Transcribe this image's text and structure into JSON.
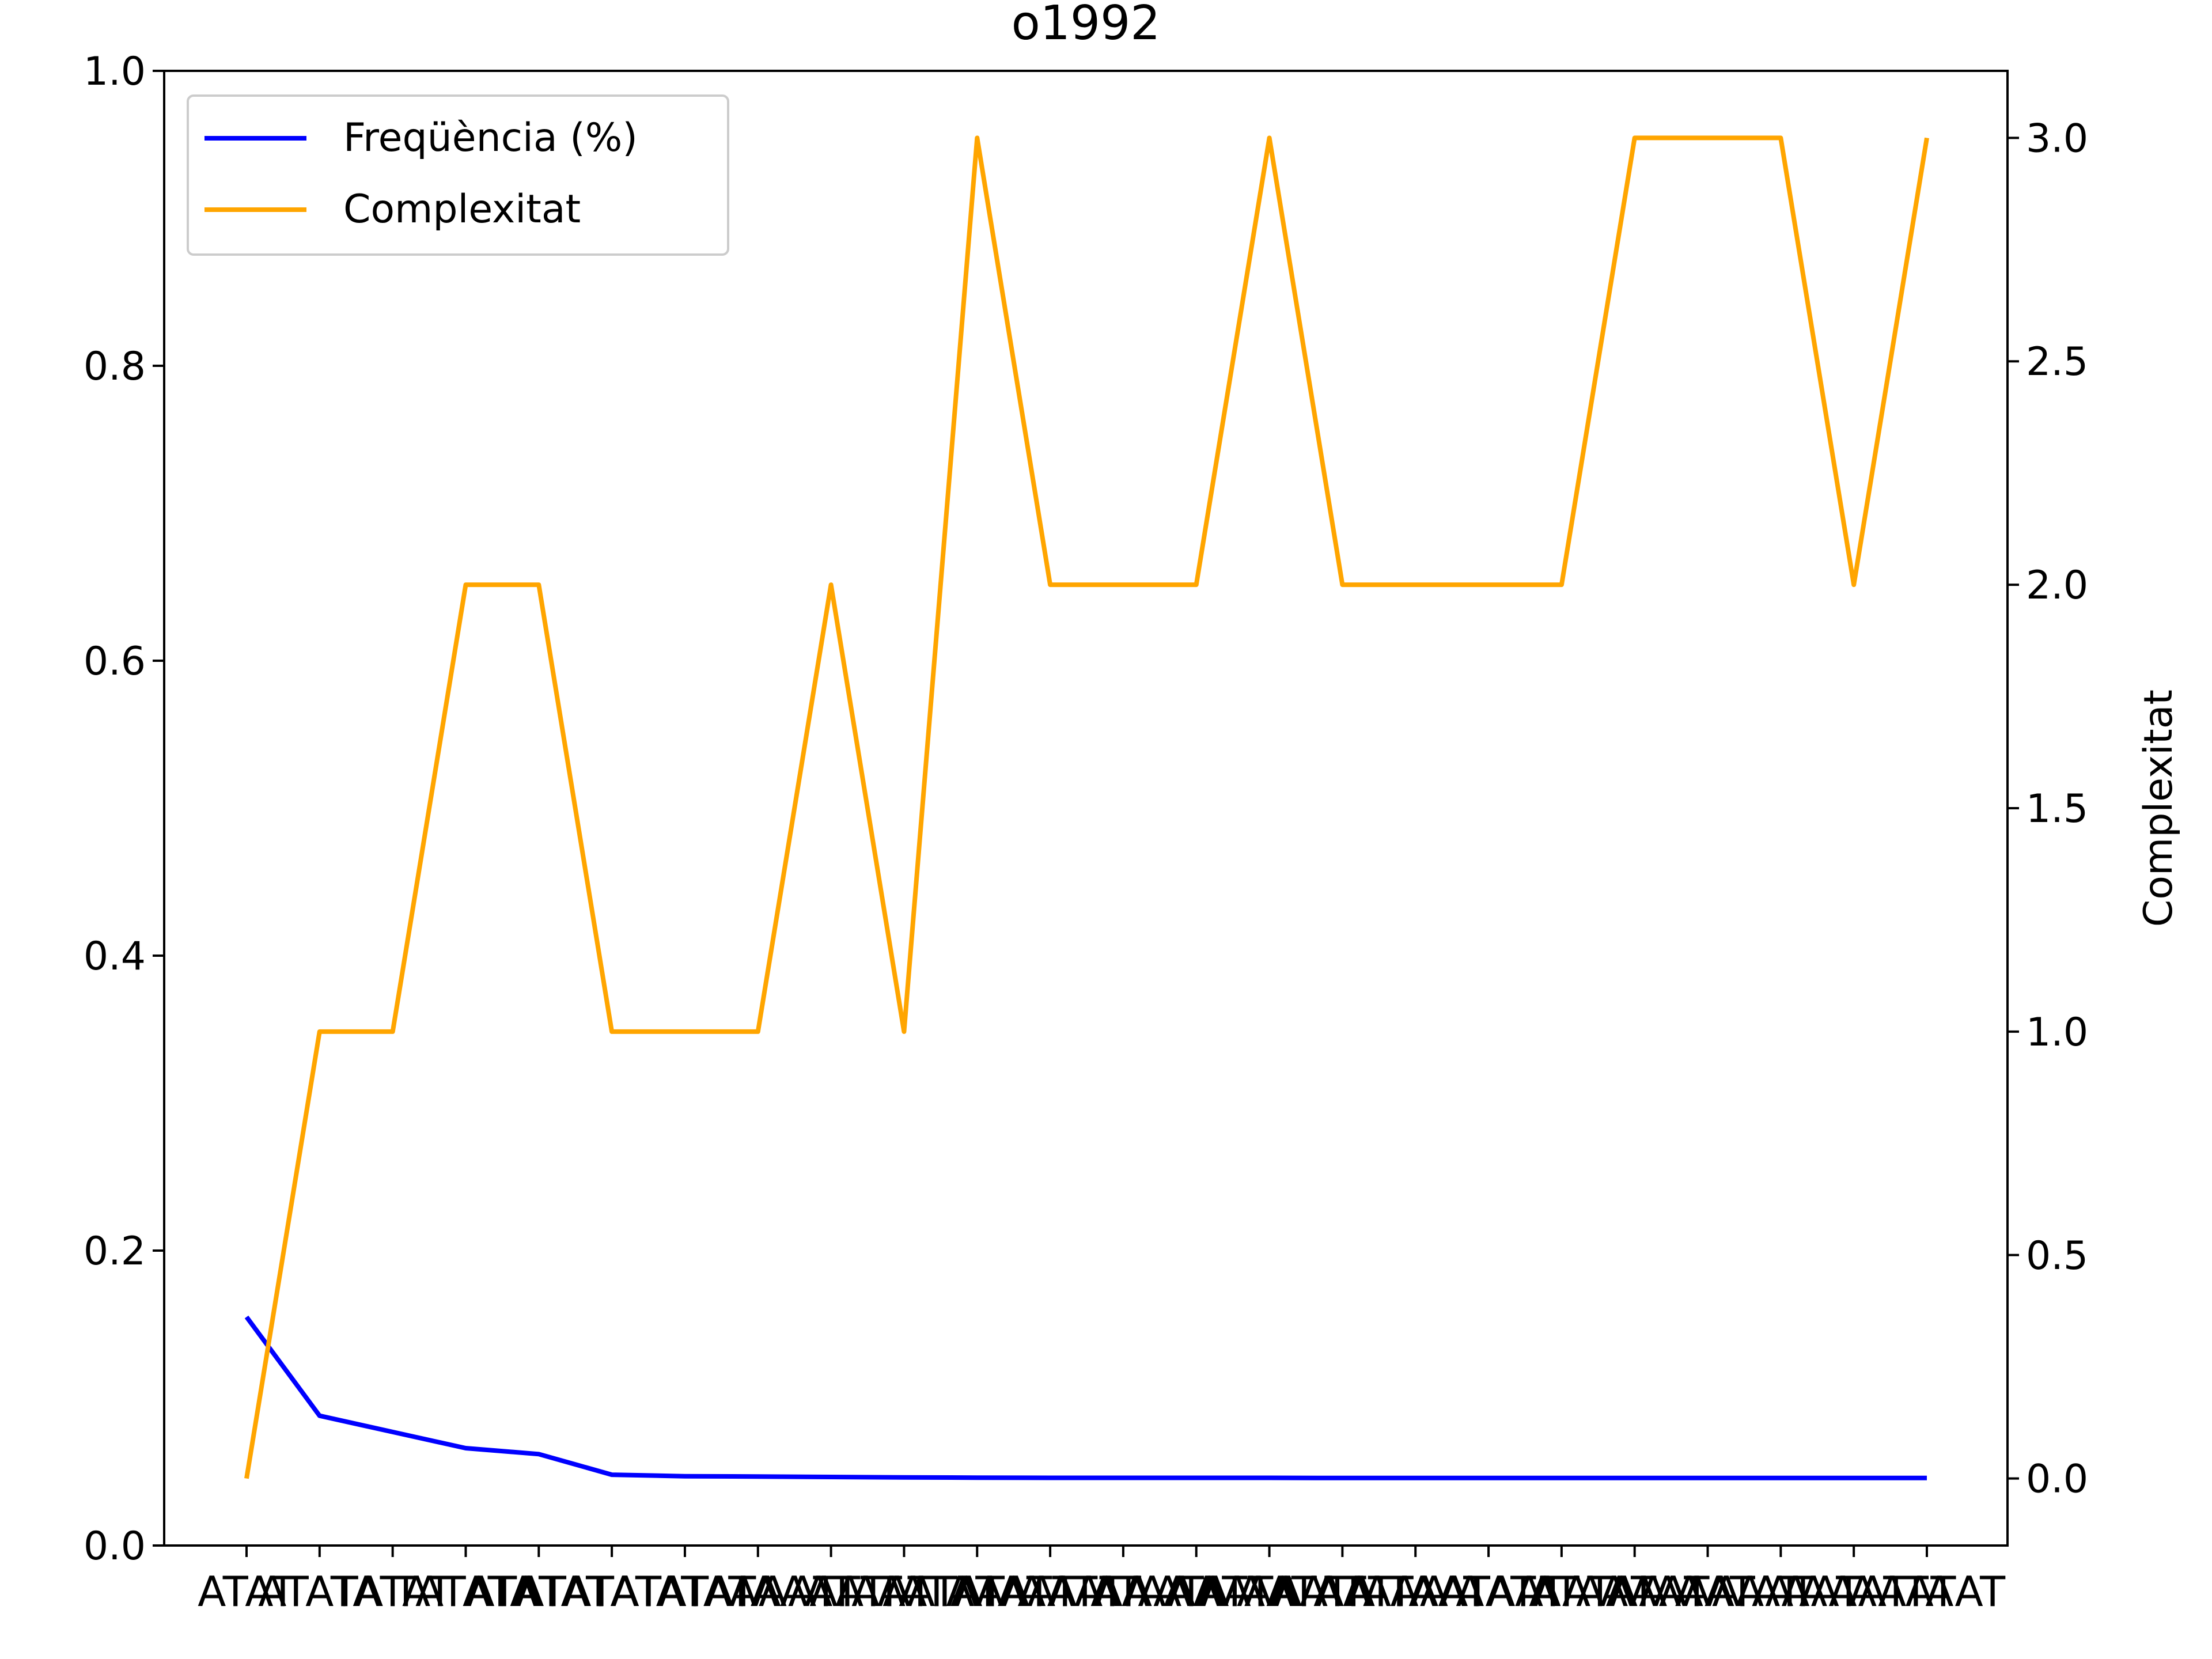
{
  "chart_data": {
    "type": "line",
    "title": "o1992",
    "xlabel": "",
    "ylabel_left": "",
    "ylabel_right": "Complexitat",
    "ylim_left": [
      0.0,
      1.0
    ],
    "ylim_right": [
      -0.15,
      3.15
    ],
    "yticks_left": [
      "0.0",
      "0.2",
      "0.4",
      "0.6",
      "0.8",
      "1.0"
    ],
    "yticks_right": [
      "0.0",
      "0.5",
      "1.0",
      "1.5",
      "2.0",
      "2.5",
      "3.0"
    ],
    "grid": false,
    "legend_position": "upper-left",
    "categories": [
      "ATAT",
      "ATATA",
      "TATAT",
      "TATATA",
      "ATATAT",
      "ATATATAT",
      "TATATATA",
      "ATATAAAT",
      "AAATATAT",
      "ATATATAA",
      "AATATATA",
      "ATAATATA",
      "AATAAATA",
      "ATAAATAA",
      "AAATAATA",
      "AATAATAA",
      "ATATAATA",
      "TAATATAA",
      "AAATATAA",
      "ATAATAAA",
      "AAATAAAT",
      "AATAAATA",
      "ATAAATAT",
      "AATAAT"
    ],
    "series": [
      {
        "name": "Freqüència (%)",
        "axis": "left",
        "color": "#0000ff",
        "values": [
          0.155,
          0.088,
          0.077,
          0.066,
          0.062,
          0.048,
          0.047,
          0.0468,
          0.0465,
          0.0462,
          0.046,
          0.0459,
          0.0459,
          0.0459,
          0.0459,
          0.0458,
          0.0458,
          0.0458,
          0.0458,
          0.0458,
          0.0458,
          0.0458,
          0.0458,
          0.0458
        ]
      },
      {
        "name": "Complexitat",
        "axis": "right",
        "color": "#ffa500",
        "values": [
          0,
          1,
          1,
          2,
          2,
          1,
          1,
          1,
          2,
          1,
          3,
          2,
          2,
          2,
          3,
          2,
          2,
          2,
          2,
          3,
          3,
          3,
          2,
          3
        ]
      }
    ]
  }
}
